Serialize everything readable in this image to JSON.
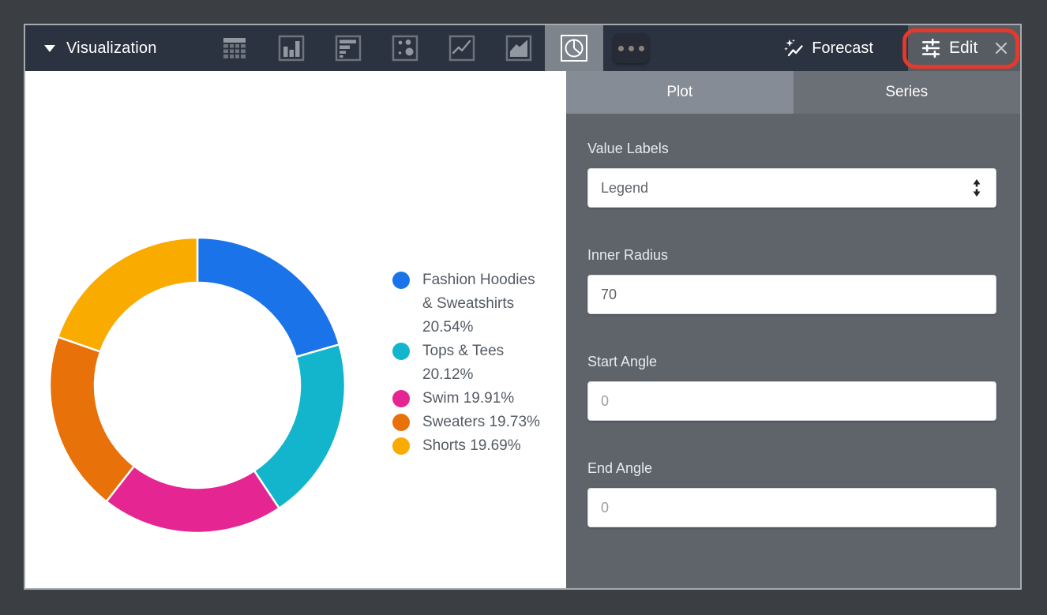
{
  "header": {
    "title": "Visualization",
    "chart_type_icons": [
      "table",
      "bar",
      "column",
      "scatter",
      "line",
      "area",
      "pie"
    ],
    "selected_chart_type": "pie",
    "more_options": "more-horizontal",
    "forecast_label": "Forecast",
    "edit_label": "Edit",
    "close": "close-x"
  },
  "panel": {
    "tabs": [
      {
        "label": "Plot",
        "active": true
      },
      {
        "label": "Series",
        "active": false
      }
    ],
    "value_labels": {
      "label": "Value Labels",
      "value": "Legend"
    },
    "inner_radius": {
      "label": "Inner Radius",
      "value": "70"
    },
    "start_angle": {
      "label": "Start Angle",
      "value": "",
      "placeholder": "0"
    },
    "end_angle": {
      "label": "End Angle",
      "value": "",
      "placeholder": "0"
    }
  },
  "chart_data": {
    "type": "pie",
    "subtype": "donut",
    "inner_radius_pct": 70,
    "start_angle_deg": 0,
    "categories": [
      "Fashion Hoodies & Sweatshirts",
      "Tops & Tees",
      "Swim",
      "Sweaters",
      "Shorts"
    ],
    "values": [
      20.54,
      20.12,
      19.91,
      19.73,
      19.69
    ],
    "value_suffix": "%",
    "colors": [
      "#1A73E8",
      "#12B5CB",
      "#E52592",
      "#E8710A",
      "#F9AB00"
    ],
    "legend_position": "right",
    "legend_entries": [
      "Fashion Hoodies & Sweatshirts 20.54%",
      "Tops & Tees 20.12%",
      "Swim 19.91%",
      "Sweaters 19.73%",
      "Shorts 19.69%"
    ]
  },
  "colors": {
    "outer_background": "#3B3E42",
    "window_border": "#A6AAAF",
    "header_background": "#2B3240",
    "panel_background": "#5F636A",
    "active_tab": "#868C95",
    "inactive_tab": "#6B7076",
    "annotation_red": "#E5392B",
    "legend_text": "#545B63"
  }
}
